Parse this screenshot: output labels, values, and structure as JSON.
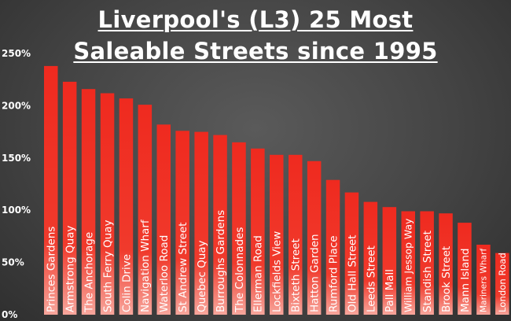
{
  "chart_data": {
    "type": "bar",
    "title_lines": [
      "Liverpool's (L3) 25 Most",
      "Saleable Streets since 1995"
    ],
    "categories": [
      "Princes Gardens",
      "Armstrong Quay",
      "The Anchorage",
      "South Ferry Quay",
      "Colin Drive",
      "Navigation Wharf",
      "Waterloo Road",
      "St Andrew Street",
      "Quebec Quay",
      "Burroughs Gardens",
      "The Colonnades",
      "Ellerman Road",
      "Lockfields View",
      "Bixteth Street",
      "Hatton Garden",
      "Rumford Place",
      "Old Hall Street",
      "Leeds Street",
      "Pall Mall",
      "William Jessop Way",
      "Standish Street",
      "Brook Street",
      "Mann Island",
      "Mariners Wharf",
      "London Road"
    ],
    "values": [
      238,
      223,
      216,
      212,
      207,
      201,
      182,
      176,
      175,
      172,
      165,
      159,
      153,
      153,
      147,
      129,
      117,
      108,
      103,
      99,
      99,
      97,
      88,
      67,
      59
    ],
    "yticks": [
      "0%",
      "50%",
      "100%",
      "150%",
      "200%",
      "250%"
    ],
    "ylim": [
      0,
      250
    ],
    "grid": false,
    "colors": {
      "bar": "#ee2a1e",
      "text": "#ffffff",
      "background": "#444444"
    }
  }
}
